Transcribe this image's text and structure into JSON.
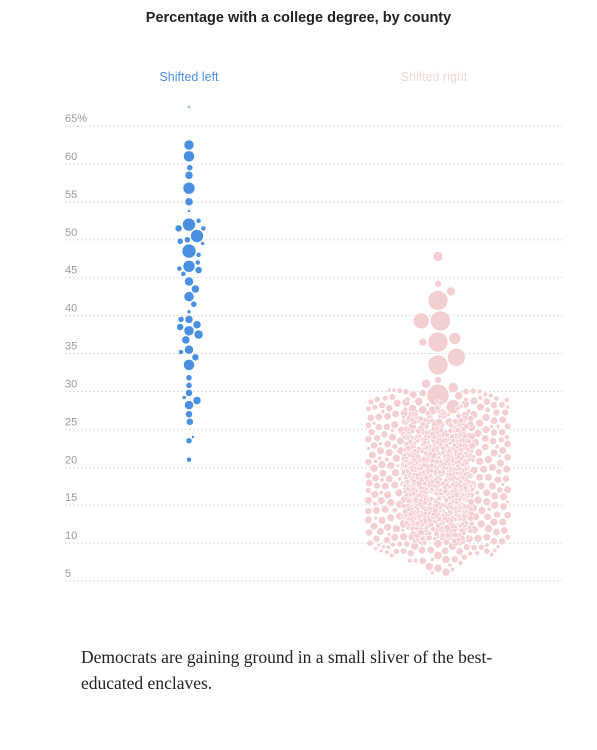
{
  "chart_data": {
    "type": "scatter",
    "subtype": "beeswarm",
    "title": "Percentage with a college degree, by county",
    "ylabel": "",
    "y_ticks": [
      "65%",
      "60",
      "55",
      "50",
      "45",
      "40",
      "35",
      "30",
      "25",
      "20",
      "15",
      "10",
      "5"
    ],
    "y_tick_values": [
      65,
      60,
      55,
      50,
      45,
      40,
      35,
      30,
      25,
      20,
      15,
      10,
      5
    ],
    "ylim": [
      3,
      68
    ],
    "grid": true,
    "series": [
      {
        "name": "Shifted left",
        "color": "#4a90e2",
        "points": [
          {
            "y": 67.5,
            "r": 1.2
          },
          {
            "y": 62.5,
            "r": 5
          },
          {
            "y": 61,
            "r": 5.5
          },
          {
            "y": 59.5,
            "r": 3
          },
          {
            "y": 58.5,
            "r": 4
          },
          {
            "y": 56.8,
            "r": 6
          },
          {
            "y": 55,
            "r": 4
          },
          {
            "y": 53.8,
            "r": 1.5
          },
          {
            "y": 52.5,
            "r": 2.5
          },
          {
            "y": 52,
            "r": 6.5
          },
          {
            "y": 51.5,
            "r": 2.5
          },
          {
            "y": 51.5,
            "r": 3.5
          },
          {
            "y": 50.5,
            "r": 6.5
          },
          {
            "y": 50,
            "r": 3
          },
          {
            "y": 49.8,
            "r": 3
          },
          {
            "y": 49.5,
            "r": 2
          },
          {
            "y": 48.5,
            "r": 7
          },
          {
            "y": 48,
            "r": 2.5
          },
          {
            "y": 47,
            "r": 2.5
          },
          {
            "y": 46.5,
            "r": 6
          },
          {
            "y": 46.2,
            "r": 2.5
          },
          {
            "y": 46,
            "r": 3.5
          },
          {
            "y": 45.5,
            "r": 2.5
          },
          {
            "y": 44.5,
            "r": 4.5
          },
          {
            "y": 43.5,
            "r": 4
          },
          {
            "y": 42.5,
            "r": 5
          },
          {
            "y": 41.5,
            "r": 3
          },
          {
            "y": 40.5,
            "r": 2
          },
          {
            "y": 39.5,
            "r": 4
          },
          {
            "y": 39.5,
            "r": 3
          },
          {
            "y": 38.8,
            "r": 4
          },
          {
            "y": 38.5,
            "r": 3.5
          },
          {
            "y": 38,
            "r": 5
          },
          {
            "y": 37.5,
            "r": 4.5
          },
          {
            "y": 36.8,
            "r": 4
          },
          {
            "y": 35.5,
            "r": 4.5
          },
          {
            "y": 35.2,
            "r": 2.5
          },
          {
            "y": 34.5,
            "r": 3.5
          },
          {
            "y": 33.5,
            "r": 5.5
          },
          {
            "y": 31.8,
            "r": 3
          },
          {
            "y": 30.8,
            "r": 3
          },
          {
            "y": 29.8,
            "r": 3.5
          },
          {
            "y": 29.2,
            "r": 2
          },
          {
            "y": 28.8,
            "r": 4
          },
          {
            "y": 28.2,
            "r": 4.5
          },
          {
            "y": 27,
            "r": 3.5
          },
          {
            "y": 26,
            "r": 3.5
          },
          {
            "y": 24,
            "r": 1.5
          },
          {
            "y": 23.5,
            "r": 3
          },
          {
            "y": 21,
            "r": 2.5
          }
        ]
      },
      {
        "name": "Shifted right",
        "color": "#f4cfd2",
        "points": [
          {
            "y": 47.8,
            "r": 5
          },
          {
            "y": 44.2,
            "r": 3.5
          },
          {
            "y": 43.2,
            "r": 4.5
          },
          {
            "y": 42,
            "r": 10
          },
          {
            "y": 39.3,
            "r": 10
          },
          {
            "y": 39.3,
            "r": 8
          },
          {
            "y": 37,
            "r": 6
          },
          {
            "y": 36.5,
            "r": 10
          },
          {
            "y": 36.5,
            "r": 4
          },
          {
            "y": 34.5,
            "r": 9
          },
          {
            "y": 33.5,
            "r": 10
          },
          {
            "y": 31.5,
            "r": 3.5
          },
          {
            "y": 31,
            "r": 4.5
          },
          {
            "y": 30.5,
            "r": 5
          },
          {
            "y": 29.5,
            "r": 11
          },
          {
            "y": 28,
            "r": 7
          },
          {
            "y": 27.5,
            "r": 4.5
          },
          {
            "y": 27,
            "r": 5
          },
          {
            "y": 25.5,
            "r": 6.5
          },
          {
            "y": 24,
            "r": 6.5
          }
        ],
        "distribution": [
          {
            "y": 30,
            "count": 10
          },
          {
            "y": 29,
            "count": 16
          },
          {
            "y": 28,
            "count": 22
          },
          {
            "y": 27,
            "count": 28
          },
          {
            "y": 26,
            "count": 34
          },
          {
            "y": 25,
            "count": 42
          },
          {
            "y": 24,
            "count": 50
          },
          {
            "y": 23,
            "count": 58
          },
          {
            "y": 22,
            "count": 64
          },
          {
            "y": 21,
            "count": 68
          },
          {
            "y": 20,
            "count": 72
          },
          {
            "y": 19,
            "count": 76
          },
          {
            "y": 18,
            "count": 78
          },
          {
            "y": 17,
            "count": 78
          },
          {
            "y": 16,
            "count": 76
          },
          {
            "y": 15,
            "count": 72
          },
          {
            "y": 14,
            "count": 66
          },
          {
            "y": 13,
            "count": 58
          },
          {
            "y": 12,
            "count": 48
          },
          {
            "y": 11,
            "count": 38
          },
          {
            "y": 10,
            "count": 28
          },
          {
            "y": 9,
            "count": 18
          },
          {
            "y": 8,
            "count": 10
          },
          {
            "y": 7,
            "count": 5
          },
          {
            "y": 6,
            "count": 2
          }
        ]
      }
    ]
  },
  "caption": "Democrats are gaining ground in a small sliver of the best-educated enclaves."
}
